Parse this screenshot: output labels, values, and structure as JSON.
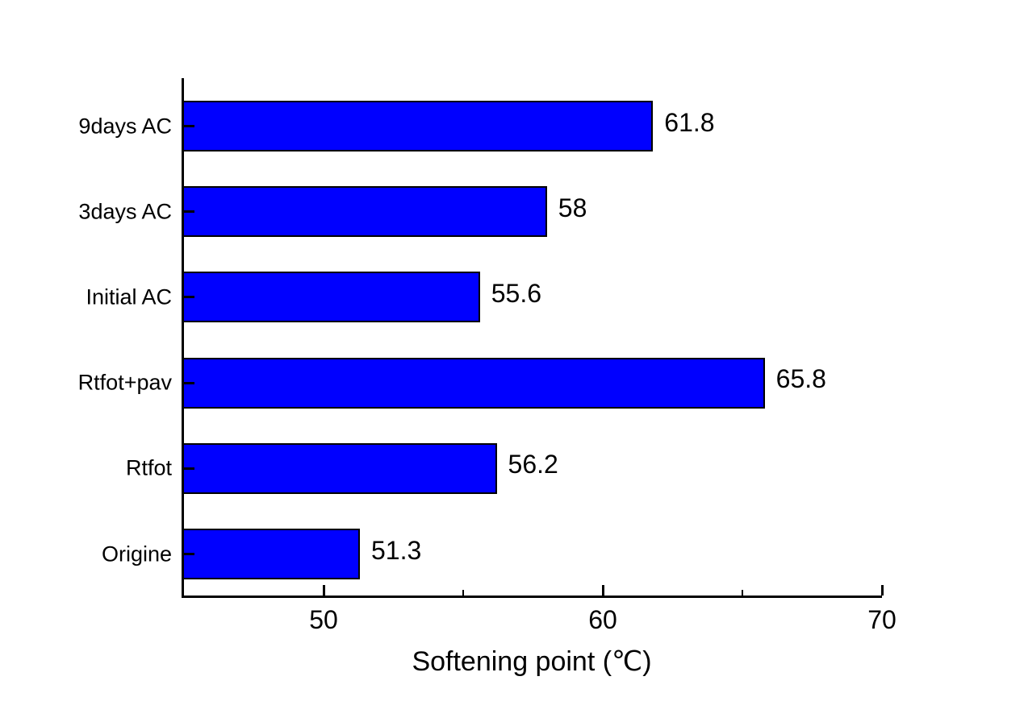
{
  "chart_data": {
    "type": "bar",
    "orientation": "horizontal",
    "title": "",
    "xlabel": "Softening point (℃)",
    "ylabel": "",
    "categories": [
      "9days AC",
      "3days AC",
      "Initial AC",
      "Rtfot+pav",
      "Rtfot",
      "Origine"
    ],
    "values": [
      61.8,
      58,
      55.6,
      65.8,
      56.2,
      51.3
    ],
    "value_labels": [
      "61.8",
      "58",
      "55.6",
      "65.8",
      "56.2",
      "51.3"
    ],
    "xlim": [
      45,
      70
    ],
    "x_major_ticks": [
      50,
      60,
      70
    ],
    "x_major_tick_labels": [
      "50",
      "60",
      "70"
    ],
    "x_minor_ticks": [
      55,
      65
    ],
    "grid": false,
    "legend": "none",
    "colors": {
      "bar_fill": "#0000FF",
      "bar_border": "#000000",
      "axis": "#000000",
      "text": "#000000",
      "background": "#FFFFFF"
    }
  }
}
